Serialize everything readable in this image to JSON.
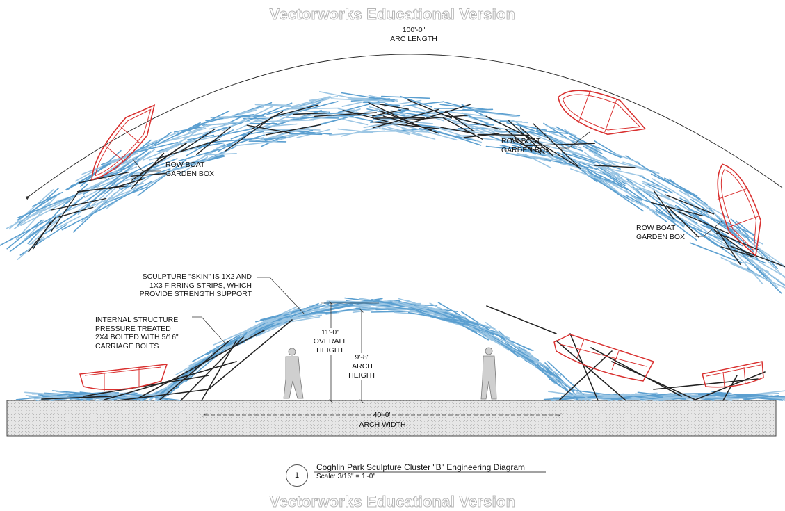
{
  "watermark": "Vectorworks Educational Version",
  "plan": {
    "arc_dimension_value": "100'-0\"",
    "arc_dimension_label": "ARC LENGTH",
    "boat_label_1": "ROW BOAT\nGARDEN BOX",
    "boat_label_2": "ROW BOAT\nGARDEN BOX",
    "boat_label_3": "ROW BOAT\nGARDEN BOX"
  },
  "elevation": {
    "skin_note": "SCULPTURE \"SKIN\" IS 1X2 AND\n1X3 FIRRING STRIPS, WHICH\nPROVIDE STRENGTH SUPPORT",
    "structure_note": "INTERNAL STRUCTURE\nPRESSURE TREATED\n2X4 BOLTED WITH 5/16\"\nCARRIAGE BOLTS",
    "overall_height_value": "11'-0\"",
    "overall_height_label": "OVERALL\nHEIGHT",
    "arch_height_value": "9'-8\"",
    "arch_height_label": "ARCH\nHEIGHT",
    "arch_width_value": "40'-0\"",
    "arch_width_label": "ARCH WIDTH"
  },
  "title_block": {
    "number": "1",
    "title": "Coghlin Park Sculpture Cluster \"B\" Engineering Diagram",
    "scale": "Scale: 3/16\" = 1'-0\""
  },
  "colors": {
    "strips": "#5b9fd0",
    "strips_light": "#9cc6e4",
    "structure": "#222222",
    "boat": "#d9302f",
    "ground_fill": "#e4e4e4"
  }
}
